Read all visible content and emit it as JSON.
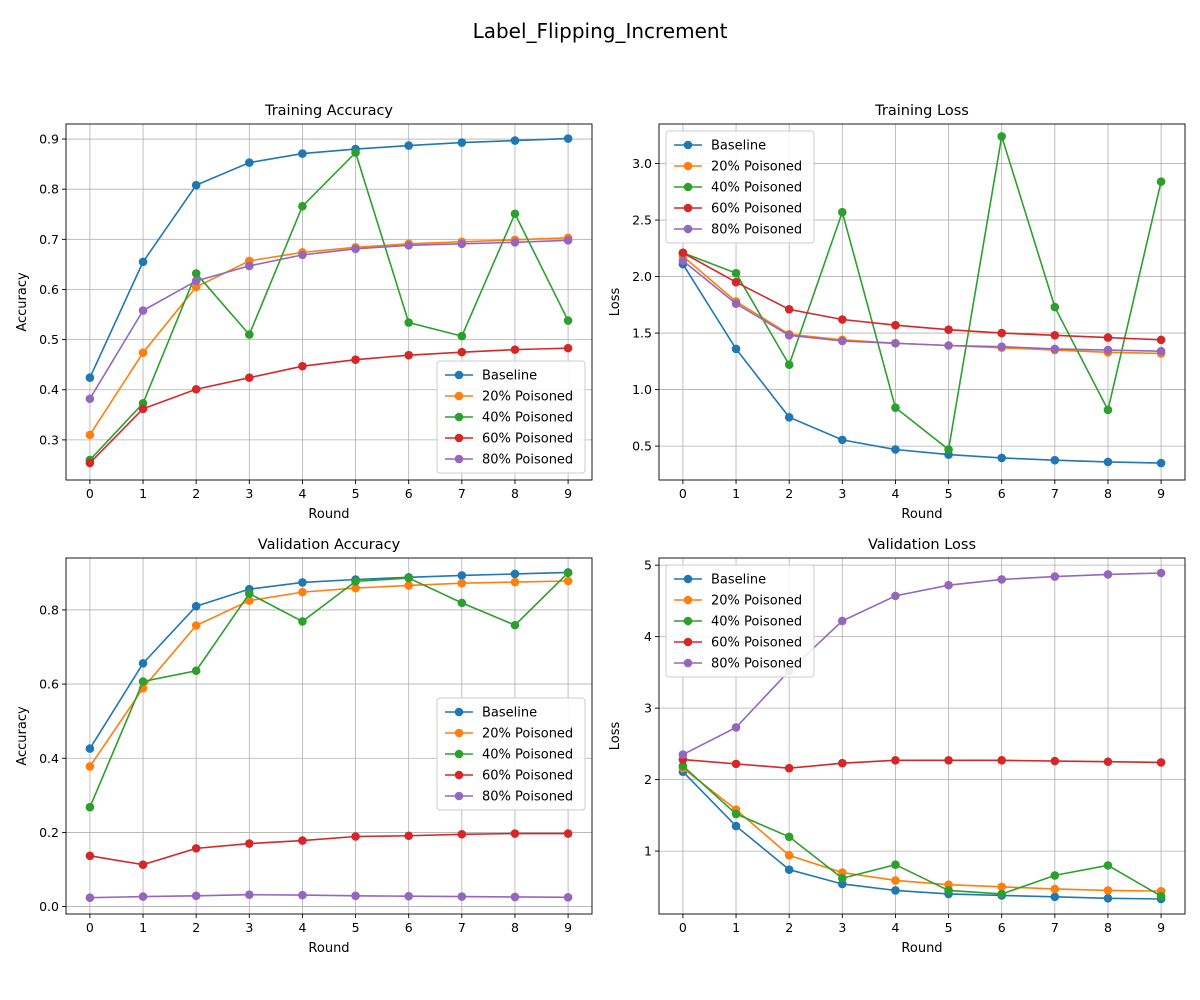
{
  "figure": {
    "title": "Label_Flipping_Increment"
  },
  "colors": {
    "Baseline": "#1f77b4",
    "20% Poisoned": "#ff7f0e",
    "40% Poisoned": "#2ca02c",
    "60% Poisoned": "#d62728",
    "80% Poisoned": "#9467bd"
  },
  "chart_data": [
    {
      "type": "line",
      "title": "Training Accuracy",
      "xlabel": "Round",
      "ylabel": "Accuracy",
      "x": [
        0,
        1,
        2,
        3,
        4,
        5,
        6,
        7,
        8,
        9
      ],
      "xlim": [
        -0.45,
        9.45
      ],
      "ylim": [
        0.22,
        0.93
      ],
      "yticks": [
        0.3,
        0.4,
        0.5,
        0.6,
        0.7,
        0.8,
        0.9
      ],
      "ytick_labels": [
        "0.3",
        "0.4",
        "0.5",
        "0.6",
        "0.7",
        "0.8",
        "0.9"
      ],
      "grid": true,
      "legend_position": "lower-right",
      "series": [
        {
          "name": "Baseline",
          "values": [
            0.424,
            0.655,
            0.808,
            0.853,
            0.871,
            0.88,
            0.887,
            0.893,
            0.897,
            0.901
          ]
        },
        {
          "name": "20% Poisoned",
          "values": [
            0.31,
            0.474,
            0.605,
            0.657,
            0.674,
            0.684,
            0.691,
            0.695,
            0.699,
            0.703
          ]
        },
        {
          "name": "40% Poisoned",
          "values": [
            0.26,
            0.373,
            0.632,
            0.51,
            0.766,
            0.873,
            0.534,
            0.507,
            0.751,
            0.538
          ]
        },
        {
          "name": "60% Poisoned",
          "values": [
            0.254,
            0.362,
            0.401,
            0.424,
            0.447,
            0.46,
            0.469,
            0.475,
            0.48,
            0.483
          ]
        },
        {
          "name": "80% Poisoned",
          "values": [
            0.382,
            0.558,
            0.617,
            0.647,
            0.669,
            0.681,
            0.688,
            0.691,
            0.694,
            0.698
          ]
        }
      ]
    },
    {
      "type": "line",
      "title": "Training Loss",
      "xlabel": "Round",
      "ylabel": "Loss",
      "x": [
        0,
        1,
        2,
        3,
        4,
        5,
        6,
        7,
        8,
        9
      ],
      "xlim": [
        -0.45,
        9.45
      ],
      "ylim": [
        0.2,
        3.35
      ],
      "yticks": [
        0.5,
        1.0,
        1.5,
        2.0,
        2.5,
        3.0
      ],
      "ytick_labels": [
        "0.5",
        "1.0",
        "1.5",
        "2.0",
        "2.5",
        "3.0"
      ],
      "grid": true,
      "legend_position": "upper-left",
      "series": [
        {
          "name": "Baseline",
          "values": [
            2.11,
            1.36,
            0.755,
            0.555,
            0.47,
            0.425,
            0.395,
            0.375,
            0.36,
            0.35
          ]
        },
        {
          "name": "20% Poisoned",
          "values": [
            2.18,
            1.78,
            1.49,
            1.44,
            1.41,
            1.39,
            1.37,
            1.35,
            1.33,
            1.32
          ]
        },
        {
          "name": "40% Poisoned",
          "values": [
            2.21,
            2.03,
            1.22,
            2.57,
            0.84,
            0.47,
            3.24,
            1.73,
            0.82,
            2.84
          ]
        },
        {
          "name": "60% Poisoned",
          "values": [
            2.21,
            1.95,
            1.71,
            1.62,
            1.57,
            1.53,
            1.5,
            1.48,
            1.46,
            1.44
          ]
        },
        {
          "name": "80% Poisoned",
          "values": [
            2.14,
            1.76,
            1.48,
            1.43,
            1.41,
            1.39,
            1.38,
            1.36,
            1.35,
            1.34
          ]
        }
      ]
    },
    {
      "type": "line",
      "title": "Validation Accuracy",
      "xlabel": "Round",
      "ylabel": "Accuracy",
      "x": [
        0,
        1,
        2,
        3,
        4,
        5,
        6,
        7,
        8,
        9
      ],
      "xlim": [
        -0.45,
        9.45
      ],
      "ylim": [
        -0.02,
        0.94
      ],
      "yticks": [
        0.0,
        0.2,
        0.4,
        0.6,
        0.8
      ],
      "ytick_labels": [
        "0.0",
        "0.2",
        "0.4",
        "0.6",
        "0.8"
      ],
      "grid": true,
      "legend_position": "center-right",
      "series": [
        {
          "name": "Baseline",
          "values": [
            0.426,
            0.656,
            0.81,
            0.856,
            0.874,
            0.882,
            0.888,
            0.893,
            0.897,
            0.901
          ]
        },
        {
          "name": "20% Poisoned",
          "values": [
            0.378,
            0.589,
            0.758,
            0.825,
            0.848,
            0.859,
            0.866,
            0.872,
            0.875,
            0.878
          ]
        },
        {
          "name": "40% Poisoned",
          "values": [
            0.268,
            0.607,
            0.636,
            0.844,
            0.769,
            0.877,
            0.886,
            0.819,
            0.759,
            0.9
          ]
        },
        {
          "name": "60% Poisoned",
          "values": [
            0.137,
            0.113,
            0.157,
            0.17,
            0.178,
            0.189,
            0.191,
            0.195,
            0.197,
            0.197
          ]
        },
        {
          "name": "80% Poisoned",
          "values": [
            0.024,
            0.027,
            0.029,
            0.032,
            0.031,
            0.029,
            0.028,
            0.027,
            0.026,
            0.025
          ]
        }
      ]
    },
    {
      "type": "line",
      "title": "Validation Loss",
      "xlabel": "Round",
      "ylabel": "Loss",
      "x": [
        0,
        1,
        2,
        3,
        4,
        5,
        6,
        7,
        8,
        9
      ],
      "xlim": [
        -0.45,
        9.45
      ],
      "ylim": [
        0.12,
        5.1
      ],
      "yticks": [
        1,
        2,
        3,
        4,
        5
      ],
      "ytick_labels": [
        "1",
        "2",
        "3",
        "4",
        "5"
      ],
      "grid": true,
      "legend_position": "upper-left",
      "series": [
        {
          "name": "Baseline",
          "values": [
            2.11,
            1.35,
            0.74,
            0.54,
            0.45,
            0.4,
            0.38,
            0.36,
            0.34,
            0.33
          ]
        },
        {
          "name": "20% Poisoned",
          "values": [
            2.16,
            1.58,
            0.94,
            0.7,
            0.59,
            0.53,
            0.5,
            0.47,
            0.45,
            0.44
          ]
        },
        {
          "name": "40% Poisoned",
          "values": [
            2.19,
            1.52,
            1.2,
            0.62,
            0.81,
            0.45,
            0.4,
            0.66,
            0.8,
            0.37
          ]
        },
        {
          "name": "60% Poisoned",
          "values": [
            2.28,
            2.22,
            2.16,
            2.23,
            2.27,
            2.27,
            2.27,
            2.26,
            2.25,
            2.24
          ]
        },
        {
          "name": "80% Poisoned",
          "values": [
            2.35,
            2.73,
            3.52,
            4.22,
            4.57,
            4.72,
            4.8,
            4.84,
            4.87,
            4.89
          ]
        }
      ]
    }
  ]
}
